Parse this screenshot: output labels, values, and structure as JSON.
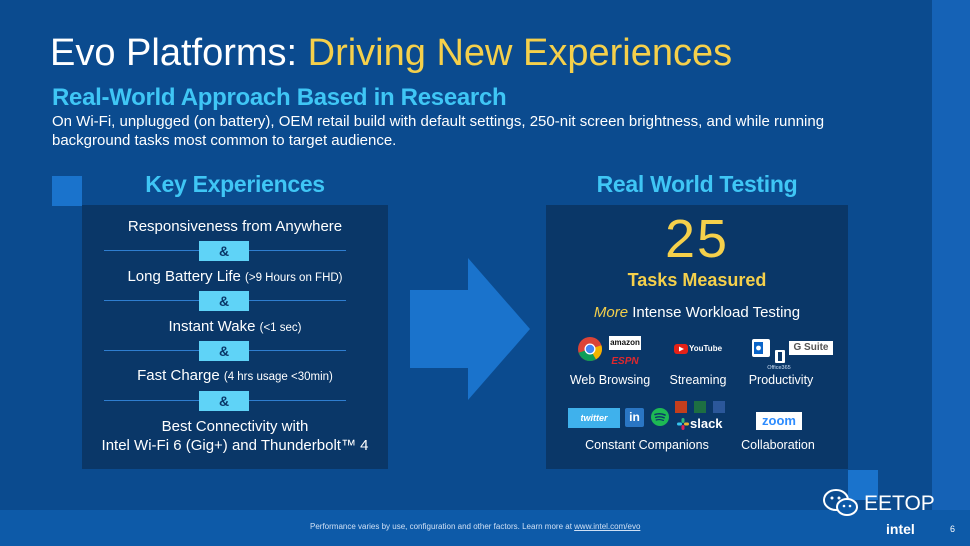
{
  "title": {
    "main": "Evo Platforms: ",
    "accent": "Driving New Experiences"
  },
  "subtitle": "Real-World Approach Based in Research",
  "description": "On Wi-Fi, unplugged (on battery), OEM retail build with default settings, 250-nit screen brightness, and while running background tasks most common to target audience.",
  "key_experiences": {
    "heading": "Key Experiences",
    "items": [
      {
        "label": "Responsiveness from Anywhere",
        "note": ""
      },
      {
        "label": "Long Battery Life ",
        "note": "(>9 Hours on FHD)"
      },
      {
        "label": "Instant Wake ",
        "note": "(<1 sec)"
      },
      {
        "label": "Fast Charge ",
        "note": "(4 hrs usage <30min)"
      },
      {
        "label": "Best Connectivity with",
        "note": ""
      }
    ],
    "last_line2": "Intel Wi-Fi 6 (Gig+) and Thunderbolt™ 4",
    "separator": "&"
  },
  "real_world": {
    "heading": "Real World Testing",
    "count": "25",
    "tasks_label": "Tasks Measured",
    "more_word": "More",
    "more_rest": " Intense Workload Testing",
    "categories": {
      "web": "Web Browsing",
      "streaming": "Streaming",
      "productivity": "Productivity",
      "companions": "Constant Companions",
      "collaboration": "Collaboration"
    },
    "logos": {
      "amazon": "amazon",
      "espn": "ESPN",
      "youtube": "YouTube",
      "gsuite": "G Suite",
      "office": "Office365",
      "twitter": "twitter",
      "linkedin": "in",
      "slack": "slack",
      "zoom": "zoom"
    }
  },
  "footer": {
    "note": "Performance varies by use, configuration and other factors.  Learn more at ",
    "link": "www.intel.com/evo",
    "brand": "intel",
    "page": "6",
    "watermark": "EETOP"
  },
  "colors": {
    "background": "#0b4b8f",
    "accent_yellow": "#f5d04b",
    "accent_cyan": "#3fc6f5",
    "panel": "#0a3768"
  }
}
